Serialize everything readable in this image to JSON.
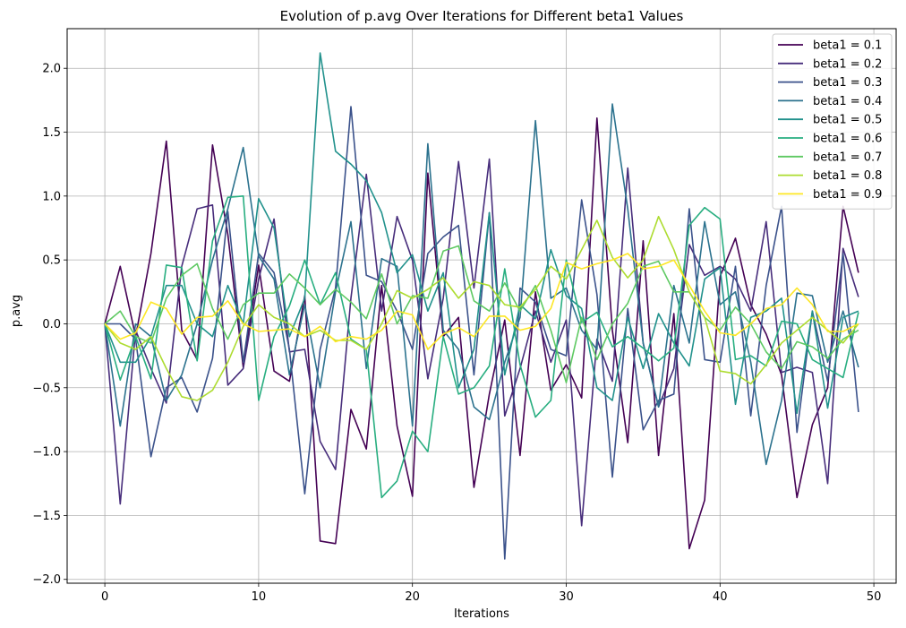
{
  "chart_data": {
    "type": "line",
    "title": "Evolution of p.avg Over Iterations for Different beta1 Values",
    "xlabel": "Iterations",
    "ylabel": "p.avg",
    "xlim": [
      -2.45,
      51.45
    ],
    "ylim": [
      -2.03,
      2.31
    ],
    "xticks": [
      0,
      10,
      20,
      30,
      40,
      50
    ],
    "yticks": [
      -2.0,
      -1.5,
      -1.0,
      -0.5,
      0.0,
      0.5,
      1.0,
      1.5,
      2.0
    ],
    "ytick_labels": [
      "−2.0",
      "−1.5",
      "−1.0",
      "−0.5",
      "0.0",
      "0.5",
      "1.0",
      "1.5",
      "2.0"
    ],
    "grid": true,
    "legend_position": "top-right",
    "x": [
      0,
      1,
      2,
      3,
      4,
      5,
      6,
      7,
      8,
      9,
      10,
      11,
      12,
      13,
      14,
      15,
      16,
      17,
      18,
      19,
      20,
      21,
      22,
      23,
      24,
      25,
      26,
      27,
      28,
      29,
      30,
      31,
      32,
      33,
      34,
      35,
      36,
      37,
      38,
      39,
      40,
      41,
      42,
      43,
      44,
      45,
      46,
      47,
      48,
      49
    ],
    "series": [
      {
        "name": "beta1 = 0.1",
        "color": "#440154",
        "values": [
          0.0,
          0.45,
          -0.1,
          0.55,
          1.43,
          -0.05,
          -0.28,
          1.4,
          0.7,
          -0.34,
          0.46,
          -0.37,
          -0.45,
          0.22,
          -1.7,
          -1.72,
          -0.67,
          -0.98,
          0.3,
          -0.8,
          -1.35,
          1.18,
          -0.1,
          0.05,
          -1.28,
          -0.55,
          0.03,
          -1.03,
          0.25,
          -0.52,
          -0.32,
          -0.58,
          1.61,
          -0.05,
          -0.93,
          0.65,
          -1.03,
          0.08,
          -1.76,
          -1.38,
          0.37,
          0.67,
          0.15,
          -0.08,
          -0.4,
          -1.36,
          -0.79,
          -0.5,
          0.92,
          0.4
        ]
      },
      {
        "name": "beta1 = 0.2",
        "color": "#472d7b",
        "values": [
          0.0,
          -1.41,
          -0.05,
          -0.35,
          -0.62,
          0.45,
          0.9,
          0.93,
          -0.48,
          -0.35,
          0.35,
          0.82,
          -0.22,
          -0.2,
          -0.92,
          -1.14,
          0.2,
          1.17,
          0.1,
          0.84,
          0.5,
          -0.43,
          0.2,
          1.27,
          0.28,
          1.29,
          -0.72,
          -0.35,
          0.1,
          -0.3,
          0.03,
          -1.58,
          -0.12,
          -0.45,
          1.22,
          -0.15,
          -0.65,
          -0.35,
          0.62,
          0.38,
          0.45,
          0.35,
          0.1,
          0.8,
          -0.38,
          -0.34,
          -0.38,
          -1.25,
          0.59,
          0.21
        ]
      },
      {
        "name": "beta1 = 0.3",
        "color": "#3b528b",
        "values": [
          0.0,
          0.0,
          -0.12,
          -1.04,
          -0.5,
          -0.42,
          -0.69,
          -0.27,
          0.88,
          -0.3,
          0.55,
          0.4,
          -0.2,
          -1.33,
          -0.2,
          0.28,
          1.7,
          0.38,
          0.33,
          0.1,
          -0.2,
          0.55,
          0.68,
          0.77,
          -0.4,
          0.87,
          -1.84,
          0.28,
          0.17,
          -0.2,
          -0.25,
          0.97,
          0.23,
          -1.2,
          0.12,
          -0.83,
          -0.6,
          -0.55,
          0.9,
          -0.28,
          -0.3,
          0.45,
          -0.72,
          0.3,
          0.92,
          -0.85,
          0.1,
          -0.45,
          0.55,
          -0.69
        ]
      },
      {
        "name": "beta1 = 0.4",
        "color": "#2c728e",
        "values": [
          0.0,
          -0.8,
          0.0,
          -0.1,
          -0.6,
          -0.4,
          0.0,
          0.5,
          0.9,
          1.38,
          0.53,
          0.35,
          -0.4,
          0.15,
          -0.5,
          0.25,
          0.8,
          -0.35,
          0.51,
          0.45,
          -0.8,
          1.41,
          -0.05,
          -0.2,
          -0.65,
          -0.75,
          -0.3,
          0.05,
          1.59,
          0.2,
          0.28,
          -0.05,
          -0.2,
          1.72,
          0.9,
          -0.15,
          -0.65,
          0.3,
          -0.15,
          0.8,
          0.15,
          0.25,
          -0.3,
          -1.1,
          -0.6,
          0.24,
          0.22,
          -0.3,
          0.1,
          -0.34
        ]
      },
      {
        "name": "beta1 = 0.5",
        "color": "#21918c",
        "values": [
          0.0,
          -0.3,
          -0.3,
          -0.1,
          0.3,
          0.3,
          0.0,
          -0.1,
          0.3,
          0.0,
          0.98,
          0.75,
          -0.1,
          0.2,
          2.12,
          1.35,
          1.25,
          1.12,
          0.87,
          0.4,
          0.54,
          0.1,
          0.4,
          -0.5,
          -0.2,
          0.87,
          -0.4,
          0.15,
          0.04,
          0.58,
          0.22,
          0.12,
          -0.5,
          -0.6,
          0.05,
          -0.35,
          0.08,
          -0.15,
          -0.33,
          0.35,
          0.44,
          -0.63,
          0.05,
          0.1,
          0.2,
          -0.7,
          0.1,
          -0.66,
          0.05,
          0.1
        ]
      },
      {
        "name": "beta1 = 0.6",
        "color": "#28ae80",
        "values": [
          0.0,
          -0.44,
          -0.1,
          -0.43,
          0.46,
          0.44,
          -0.29,
          0.65,
          0.99,
          1.0,
          -0.6,
          -0.1,
          0.14,
          0.5,
          0.15,
          0.4,
          -0.12,
          -0.2,
          -1.36,
          -1.23,
          -0.84,
          -1.0,
          -0.1,
          -0.55,
          -0.5,
          -0.33,
          0.43,
          -0.32,
          -0.73,
          -0.6,
          0.5,
          0.01,
          0.09,
          -0.18,
          -0.1,
          -0.19,
          -0.29,
          -0.19,
          0.77,
          0.91,
          0.82,
          -0.28,
          -0.25,
          -0.33,
          0.02,
          0.0,
          -0.28,
          -0.35,
          -0.42,
          0.09
        ]
      },
      {
        "name": "beta1 = 0.7",
        "color": "#5ec962",
        "values": [
          0.0,
          0.1,
          -0.1,
          -0.15,
          0.2,
          0.38,
          0.47,
          0.12,
          -0.12,
          0.15,
          0.24,
          0.24,
          0.39,
          0.28,
          0.15,
          0.27,
          0.17,
          0.04,
          0.39,
          0.0,
          0.22,
          0.2,
          0.57,
          0.61,
          0.18,
          0.1,
          0.32,
          0.1,
          0.3,
          -0.05,
          -0.46,
          0.05,
          -0.28,
          0.0,
          0.16,
          0.45,
          0.49,
          0.25,
          0.25,
          0.05,
          -0.05,
          0.13,
          0.0,
          -0.22,
          -0.35,
          -0.14,
          -0.18,
          -0.27,
          -0.12,
          -0.05
        ]
      },
      {
        "name": "beta1 = 0.8",
        "color": "#addc30",
        "values": [
          0.0,
          -0.15,
          -0.2,
          -0.1,
          -0.35,
          -0.57,
          -0.6,
          -0.52,
          -0.3,
          -0.02,
          0.15,
          0.05,
          0.0,
          -0.1,
          -0.05,
          -0.13,
          -0.13,
          -0.2,
          0.0,
          0.26,
          0.2,
          0.27,
          0.36,
          0.2,
          0.33,
          0.3,
          0.15,
          0.13,
          0.27,
          0.45,
          0.35,
          0.58,
          0.81,
          0.52,
          0.36,
          0.5,
          0.84,
          0.58,
          0.25,
          0.05,
          -0.37,
          -0.39,
          -0.47,
          -0.32,
          -0.15,
          -0.05,
          0.05,
          -0.05,
          -0.15,
          0.0
        ]
      },
      {
        "name": "beta1 = 0.9",
        "color": "#fde725",
        "values": [
          0.0,
          -0.12,
          -0.07,
          0.17,
          0.12,
          -0.08,
          0.05,
          0.06,
          0.18,
          0.0,
          -0.06,
          -0.05,
          -0.04,
          -0.1,
          -0.02,
          -0.14,
          -0.1,
          -0.12,
          -0.05,
          0.1,
          0.07,
          -0.2,
          -0.08,
          -0.03,
          -0.1,
          0.06,
          0.06,
          -0.05,
          -0.02,
          0.12,
          0.48,
          0.43,
          0.47,
          0.5,
          0.55,
          0.43,
          0.45,
          0.5,
          0.3,
          0.1,
          -0.07,
          -0.09,
          0.0,
          0.12,
          0.15,
          0.28,
          0.15,
          -0.06,
          -0.06,
          0.0
        ]
      }
    ]
  }
}
